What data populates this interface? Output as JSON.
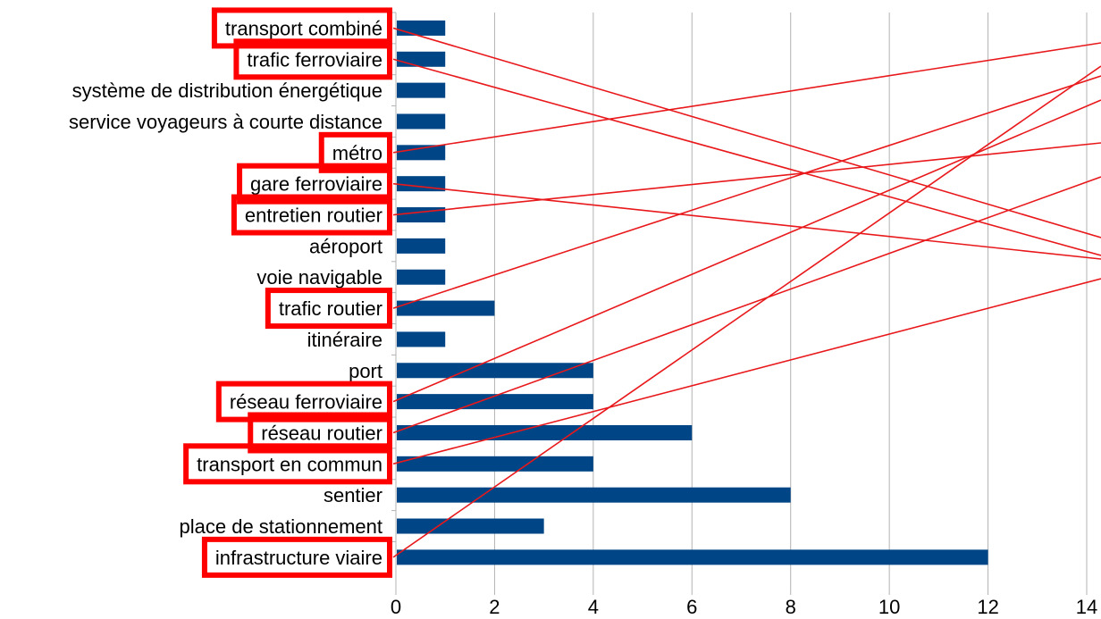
{
  "chart_data": {
    "type": "bar",
    "orientation": "horizontal",
    "categories": [
      "transport combiné",
      "trafic ferroviaire",
      "système de distribution énergétique",
      "service voyageurs à courte distance",
      "métro",
      "gare ferroviaire",
      "entretien routier",
      "aéroport",
      "voie navigable",
      "trafic routier",
      "itinéraire",
      "port",
      "réseau ferroviaire",
      "réseau routier",
      "transport en commun",
      "sentier",
      "place de stationnement",
      "infrastructure viaire"
    ],
    "values": [
      1,
      1,
      1,
      1,
      1,
      1,
      1,
      1,
      1,
      2,
      1,
      4,
      4,
      6,
      4,
      8,
      3,
      12
    ],
    "xlim": [
      0,
      14
    ],
    "xticks": [
      "0",
      "2",
      "4",
      "6",
      "8",
      "10",
      "12",
      "14"
    ],
    "title": "",
    "xlabel": "",
    "ylabel": "",
    "grid": "vertical",
    "bar_color": "#004586",
    "highlighted_categories": [
      "transport combiné",
      "trafic ferroviaire",
      "métro",
      "gare ferroviaire",
      "entretien routier",
      "trafic routier",
      "réseau ferroviaire",
      "réseau routier",
      "transport en commun",
      "infrastructure viaire"
    ],
    "highlight_color": "#ff0000",
    "connector_color": "#e8181b"
  }
}
